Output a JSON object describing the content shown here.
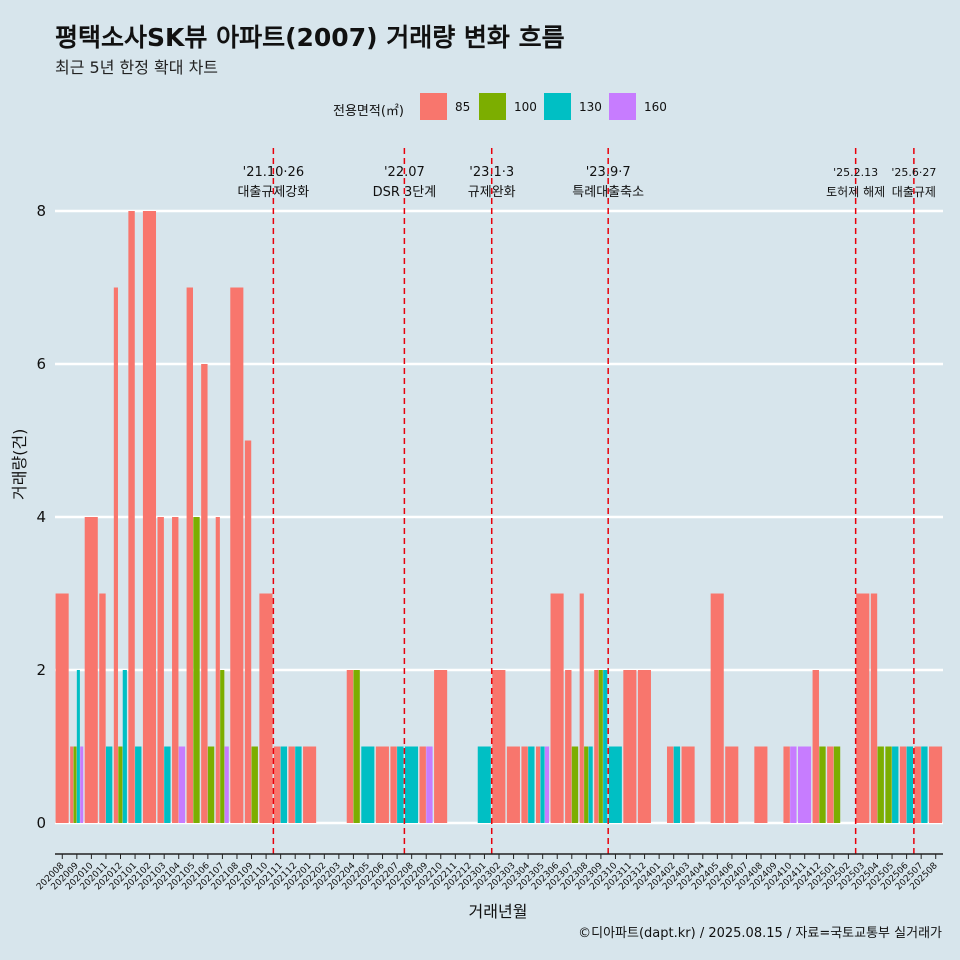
{
  "title": "평택소사SK뷰 아파트(2007) 거래량 변화 흐름",
  "subtitle": "최근 5년 한정 확대 차트",
  "caption": "©디아파트(dapt.kr) / 2025.08.15 / 자료=국토교통부 실거래가",
  "legend": {
    "title": "전용면적(㎡)",
    "items": [
      {
        "label": "85",
        "color": "#F8766D"
      },
      {
        "label": "100",
        "color": "#7CAE00"
      },
      {
        "label": "130",
        "color": "#00BFC4"
      },
      {
        "label": "160",
        "color": "#C77CFF"
      }
    ]
  },
  "chart_data": {
    "type": "bar",
    "xlabel": "거래년월",
    "ylabel": "거래량(건)",
    "ylim": [
      0,
      8
    ],
    "yticks": [
      0,
      2,
      4,
      6,
      8
    ],
    "grid": true,
    "legend_position": "top",
    "categories": [
      "202008",
      "202009",
      "202010",
      "202011",
      "202012",
      "202101",
      "202102",
      "202103",
      "202104",
      "202105",
      "202106",
      "202107",
      "202108",
      "202109",
      "202110",
      "202111",
      "202112",
      "202201",
      "202202",
      "202203",
      "202204",
      "202205",
      "202206",
      "202207",
      "202208",
      "202209",
      "202210",
      "202211",
      "202212",
      "202301",
      "202302",
      "202303",
      "202304",
      "202305",
      "202306",
      "202307",
      "202308",
      "202309",
      "202310",
      "202311",
      "202312",
      "202401",
      "202402",
      "202403",
      "202404",
      "202405",
      "202406",
      "202407",
      "202408",
      "202409",
      "202410",
      "202411",
      "202412",
      "202501",
      "202502",
      "202503",
      "202504",
      "202505",
      "202506",
      "202507",
      "202508"
    ],
    "series": [
      {
        "name": "85",
        "color": "#F8766D",
        "values": [
          3,
          1,
          4,
          3,
          7,
          8,
          8,
          4,
          4,
          7,
          6,
          4,
          7,
          5,
          3,
          1,
          1,
          1,
          0,
          0,
          2,
          0,
          1,
          1,
          0,
          1,
          2,
          0,
          0,
          0,
          2,
          1,
          1,
          1,
          3,
          2,
          3,
          2,
          0,
          2,
          2,
          0,
          1,
          1,
          0,
          3,
          1,
          0,
          1,
          0,
          1,
          0,
          2,
          1,
          0,
          3,
          3,
          0,
          1,
          1,
          1
        ]
      },
      {
        "name": "100",
        "color": "#7CAE00",
        "values": [
          0,
          1,
          0,
          0,
          1,
          0,
          0,
          0,
          0,
          4,
          1,
          2,
          0,
          1,
          0,
          0,
          0,
          0,
          0,
          0,
          2,
          0,
          0,
          0,
          0,
          0,
          0,
          0,
          0,
          0,
          0,
          0,
          0,
          0,
          0,
          1,
          1,
          2,
          0,
          0,
          0,
          0,
          0,
          0,
          0,
          0,
          0,
          0,
          0,
          0,
          0,
          0,
          1,
          1,
          0,
          0,
          1,
          1,
          0,
          0,
          0
        ]
      },
      {
        "name": "130",
        "color": "#00BFC4",
        "values": [
          0,
          2,
          0,
          1,
          2,
          1,
          0,
          1,
          0,
          0,
          0,
          0,
          0,
          0,
          0,
          1,
          1,
          0,
          0,
          0,
          0,
          1,
          0,
          1,
          1,
          0,
          0,
          0,
          0,
          1,
          0,
          0,
          1,
          1,
          0,
          0,
          1,
          2,
          1,
          0,
          0,
          0,
          1,
          0,
          0,
          0,
          0,
          0,
          0,
          0,
          0,
          0,
          0,
          0,
          0,
          0,
          0,
          1,
          1,
          1,
          0
        ]
      },
      {
        "name": "160",
        "color": "#C77CFF",
        "values": [
          0,
          1,
          0,
          0,
          0,
          0,
          0,
          0,
          1,
          0,
          0,
          1,
          0,
          0,
          0,
          0,
          0,
          0,
          0,
          0,
          0,
          0,
          0,
          0,
          0,
          1,
          0,
          0,
          0,
          0,
          0,
          0,
          0,
          1,
          0,
          0,
          0,
          0,
          0,
          0,
          0,
          0,
          0,
          0,
          0,
          0,
          0,
          0,
          0,
          0,
          1,
          1,
          0,
          0,
          0,
          0,
          0,
          0,
          0,
          0,
          0
        ]
      }
    ],
    "annotations": [
      {
        "date": "'21.10·26",
        "label": "대출규제강화",
        "after": "202110"
      },
      {
        "date": "'22.07",
        "label": "DSR 3단계",
        "after": "202207"
      },
      {
        "date": "'23.1·3",
        "label": "규제완화",
        "after": "202301"
      },
      {
        "date": "'23.9·7",
        "label": "특례대출축소",
        "after": "202309"
      },
      {
        "date": "'25.2.13",
        "label": "토허제 해제",
        "after": "202502"
      },
      {
        "date": "'25.6·27",
        "label": "대출규제",
        "after": "202506"
      }
    ]
  }
}
